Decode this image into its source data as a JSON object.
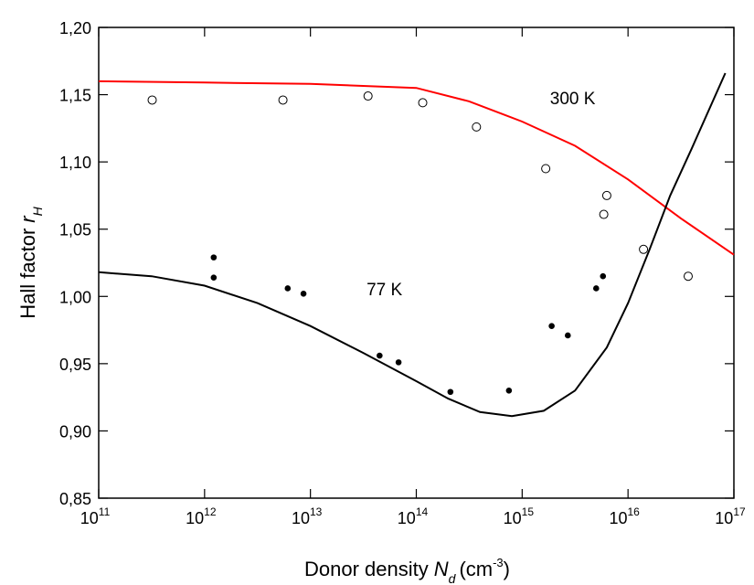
{
  "chart_data": {
    "type": "scatter",
    "xlabel": {
      "text": "Donor density",
      "symbol": "N",
      "subscript": "d",
      "unit": "(cm",
      "unit_exponent": "-3",
      "unit_close": ")"
    },
    "ylabel": {
      "text": "Hall factor",
      "symbol": "r",
      "subscript": "H"
    },
    "xscale": "log",
    "xlim": [
      100000000000.0,
      1e+17
    ],
    "xticks": [
      {
        "value": 100000000000.0,
        "label": "10",
        "exponent": "11"
      },
      {
        "value": 1000000000000.0,
        "label": "10",
        "exponent": "12"
      },
      {
        "value": 10000000000000.0,
        "label": "10",
        "exponent": "13"
      },
      {
        "value": 100000000000000.0,
        "label": "10",
        "exponent": "14"
      },
      {
        "value": 1000000000000000.0,
        "label": "10",
        "exponent": "15"
      },
      {
        "value": 1e+16,
        "label": "10",
        "exponent": "16"
      },
      {
        "value": 1e+17,
        "label": "10",
        "exponent": "17"
      }
    ],
    "ylim": [
      0.85,
      1.2
    ],
    "yticks": [
      {
        "value": 0.85,
        "label": "0,85"
      },
      {
        "value": 0.9,
        "label": "0,90"
      },
      {
        "value": 0.95,
        "label": "0,95"
      },
      {
        "value": 1.0,
        "label": "1,00"
      },
      {
        "value": 1.05,
        "label": "1,05"
      },
      {
        "value": 1.1,
        "label": "1,10"
      },
      {
        "value": 1.15,
        "label": "1,15"
      },
      {
        "value": 1.2,
        "label": "1,20"
      }
    ],
    "annotations": [
      {
        "text": "300 K",
        "x": 3000000000000000.0,
        "y": 1.143,
        "color": "#ff0000"
      },
      {
        "text": "77 K",
        "x": 50000000000000.0,
        "y": 1.001,
        "color": "#000000"
      }
    ],
    "series": [
      {
        "style": "line",
        "color": "#ff0000",
        "x": [
          100000000000.0,
          1000000000000.0,
          10000000000000.0,
          100000000000000.0,
          316000000000000.0,
          1000000000000000.0,
          3160000000000000.0,
          1e+16,
          3.16e+16,
          1e+17
        ],
        "values": [
          1.16,
          1.159,
          1.158,
          1.155,
          1.145,
          1.13,
          1.112,
          1.087,
          1.058,
          1.031
        ]
      },
      {
        "style": "line",
        "color": "#000000",
        "x": [
          100000000000.0,
          316000000000.0,
          1000000000000.0,
          3160000000000.0,
          10000000000000.0,
          31600000000000.0,
          100000000000000.0,
          200000000000000.0,
          400000000000000.0,
          800000000000000.0,
          1600000000000000.0,
          3160000000000000.0,
          6300000000000000.0,
          1e+16,
          1.6e+16,
          2.5e+16,
          4e+16,
          8.3e+16
        ],
        "values": [
          1.018,
          1.015,
          1.008,
          0.995,
          0.978,
          0.958,
          0.937,
          0.924,
          0.914,
          0.911,
          0.915,
          0.93,
          0.962,
          0.995,
          1.035,
          1.075,
          1.11,
          1.166
        ]
      },
      {
        "style": "open-marker",
        "color": "#000000",
        "x": [
          320000000000.0,
          5500000000000.0,
          35000000000000.0,
          115000000000000.0,
          370000000000000.0,
          1670000000000000.0,
          6300000000000000.0,
          5900000000000000.0,
          1.4e+16,
          3.7e+16
        ],
        "values": [
          1.146,
          1.146,
          1.149,
          1.144,
          1.126,
          1.095,
          1.075,
          1.061,
          1.035,
          1.015
        ]
      },
      {
        "style": "filled-marker",
        "color": "#000000",
        "x": [
          1220000000000.0,
          1220000000000.0,
          6100000000000.0,
          8600000000000.0,
          45000000000000.0,
          68000000000000.0,
          210000000000000.0,
          750000000000000.0,
          1900000000000000.0,
          2700000000000000.0,
          5000000000000000.0,
          5800000000000000.0
        ],
        "values": [
          1.029,
          1.014,
          1.006,
          1.002,
          0.956,
          0.951,
          0.929,
          0.93,
          0.978,
          0.971,
          1.006,
          1.015
        ]
      }
    ]
  }
}
